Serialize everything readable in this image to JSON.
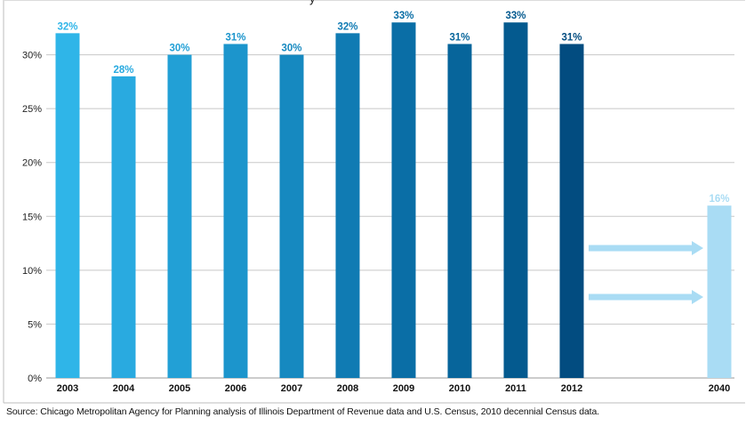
{
  "chart_data": {
    "type": "bar",
    "title": "",
    "xlabel": "",
    "ylabel": "",
    "ylim": [
      0,
      35
    ],
    "y_ticks": [
      "0%",
      "5%",
      "10%",
      "15%",
      "20%",
      "25%",
      "30%"
    ],
    "y_tick_values": [
      0,
      5,
      10,
      15,
      20,
      25,
      30
    ],
    "categories": [
      "2003",
      "2004",
      "2005",
      "2006",
      "2007",
      "2008",
      "2009",
      "2010",
      "2011",
      "2012",
      "2040"
    ],
    "values": [
      32,
      28,
      30,
      31,
      30,
      32,
      33,
      31,
      33,
      31,
      16
    ],
    "data_labels": [
      "32%",
      "28%",
      "30%",
      "31%",
      "30%",
      "32%",
      "33%",
      "31%",
      "33%",
      "31%",
      "16%"
    ],
    "bar_colors": [
      "#2fb5e8",
      "#29aae0",
      "#22a0d6",
      "#1c95cc",
      "#1689c0",
      "#107bb3",
      "#0a6ea6",
      "#07659b",
      "#045a8f",
      "#024c80",
      "#a9dcf4"
    ],
    "label_colors": [
      "#2fb5e8",
      "#29aae0",
      "#22a0d6",
      "#1c95cc",
      "#1689c0",
      "#107bb3",
      "#0a6ea6",
      "#07659b",
      "#045a8f",
      "#024c80",
      "#a9dcf4"
    ],
    "grid": true,
    "grid_color": "#c8c8c8",
    "arrow_color": "#a9dcf4",
    "legend": "none"
  },
  "footer": {
    "source": "Source: Chicago Metropolitan Agency for Planning analysis of Illinois Department of Revenue data and U.S. Census, 2010 decennial Census data."
  },
  "header_fragment": "y"
}
